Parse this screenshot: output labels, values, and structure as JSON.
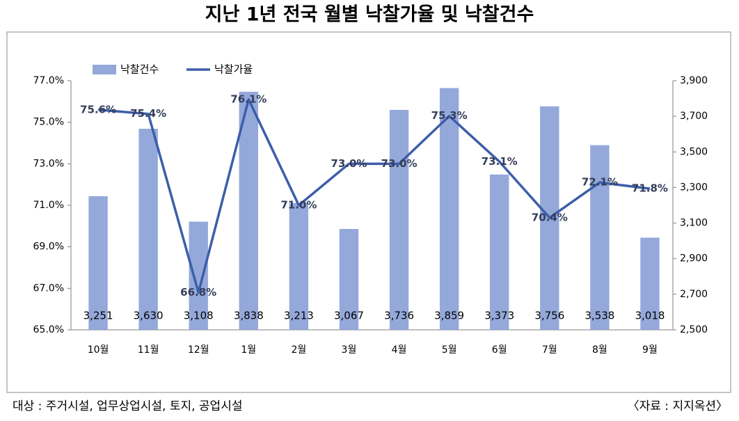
{
  "chart_data": {
    "type": "combo",
    "title": "지난 1년 전국 월별 낙찰가율 및 낙찰건수",
    "categories": [
      "10월",
      "11월",
      "12월",
      "1월",
      "2월",
      "3월",
      "4월",
      "5월",
      "6월",
      "7월",
      "8월",
      "9월"
    ],
    "series": [
      {
        "name": "낙찰건수",
        "type": "bar",
        "axis": "y2",
        "color": "#94a8da",
        "values": [
          3251,
          3630,
          3108,
          3838,
          3213,
          3067,
          3736,
          3859,
          3373,
          3756,
          3538,
          3018
        ],
        "value_labels": [
          "3,251",
          "3,630",
          "3,108",
          "3,838",
          "3,213",
          "3,067",
          "3,736",
          "3,859",
          "3,373",
          "3,756",
          "3,538",
          "3,018"
        ]
      },
      {
        "name": "낙찰가율",
        "type": "line",
        "color": "#3c5eaa",
        "values": [
          75.6,
          75.4,
          66.8,
          76.1,
          71.0,
          73.0,
          73.0,
          75.3,
          73.1,
          70.4,
          72.1,
          71.8
        ],
        "value_labels": [
          "75.6%",
          "75.4%",
          "66.8%",
          "76.1%",
          "71.0%",
          "73.0%",
          "73.0%",
          "75.3%",
          "73.1%",
          "70.4%",
          "72.1%",
          "71.8%"
        ]
      }
    ],
    "ylim": [
      65,
      77
    ],
    "yticks": [
      {
        "value": 65,
        "label": "65.0%"
      },
      {
        "value": 67,
        "label": "67.0%"
      },
      {
        "value": 69,
        "label": "69.0%"
      },
      {
        "value": 71,
        "label": "71.0%"
      },
      {
        "value": 73,
        "label": "73.0%"
      },
      {
        "value": 75,
        "label": "75.0%"
      },
      {
        "value": 77,
        "label": "77.0%"
      }
    ],
    "y2lim": [
      2500,
      3900
    ],
    "y2ticks": [
      {
        "value": 2500,
        "label": "2,500"
      },
      {
        "value": 2700,
        "label": "2,700"
      },
      {
        "value": 2900,
        "label": "2,900"
      },
      {
        "value": 3100,
        "label": "3,100"
      },
      {
        "value": 3300,
        "label": "3,300"
      },
      {
        "value": 3500,
        "label": "3,500"
      },
      {
        "value": 3700,
        "label": "3,700"
      },
      {
        "value": 3900,
        "label": "3,900"
      }
    ],
    "grid": false,
    "legend": "top-left",
    "note": "대상 : 주거시설, 업무상업시설, 토지, 공업시설",
    "source": "〈자료 : 지지옥션〉"
  }
}
